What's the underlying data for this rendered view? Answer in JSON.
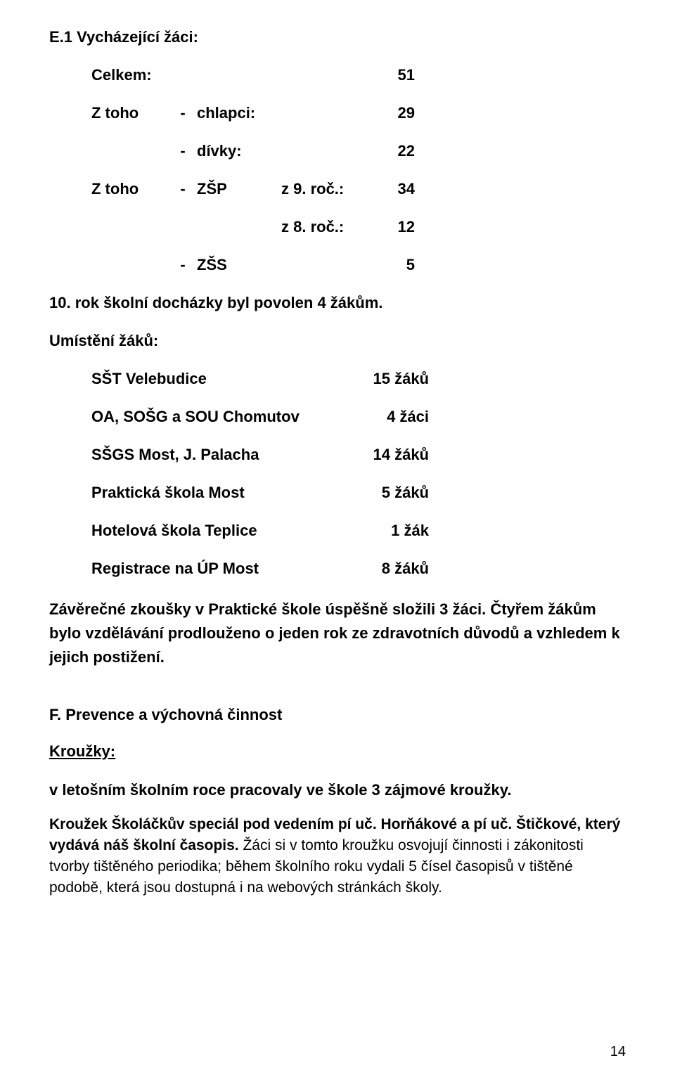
{
  "section_e": {
    "heading": "E.1 Vycházející žáci:",
    "rows": [
      {
        "c1": "Celkem:",
        "c2": "",
        "c3": "",
        "c4": "",
        "c5": "51"
      },
      {
        "c1": "Z toho",
        "c2": "-",
        "c3": "chlapci:",
        "c4": "",
        "c5": "29"
      },
      {
        "c1": "",
        "c2": "-",
        "c3": "dívky:",
        "c4": "",
        "c5": "22"
      },
      {
        "c1": "Z toho",
        "c2": "-",
        "c3": "ZŠP",
        "c4": "z 9. roč.:",
        "c5": "34"
      },
      {
        "c1": "",
        "c2": "",
        "c3": "",
        "c4": "z 8. roč.:",
        "c5": "12"
      },
      {
        "c1": "",
        "c2": "-",
        "c3": "ZŠS",
        "c4": "",
        "c5": "5"
      }
    ],
    "note": "10. rok školní docházky byl povolen 4 žákům."
  },
  "placement": {
    "heading": "Umístění žáků:",
    "rows": [
      {
        "school": "SŠT Velebudice",
        "count": "15 žáků"
      },
      {
        "school": "OA, SOŠG a SOU Chomutov",
        "count": "4 žáci"
      },
      {
        "school": "SŠGS Most, J. Palacha",
        "count": "14 žáků"
      },
      {
        "school": "Praktická škola Most",
        "count": "5 žáků"
      },
      {
        "school": "Hotelová škola Teplice",
        "count": "1 žák"
      },
      {
        "school": "Registrace na ÚP Most",
        "count": "8 žáků"
      }
    ],
    "footer": "Závěrečné zkoušky v Praktické škole úspěšně složili 3 žáci. Čtyřem žákům bylo vzdělávání prodlouženo o jeden rok ze zdravotních důvodů a vzhledem k jejich postižení."
  },
  "section_f": {
    "heading": "F. Prevence a výchovná činnost",
    "subheading": "Kroužky:",
    "line": "v letošním školním roce pracovaly ve škole 3 zájmové kroužky.",
    "para_bold": "Kroužek Školáčkův speciál pod vedením pí uč. Horňákové a pí uč. Štičkové, který vydává náš školní časopis.",
    "para_rest": " Žáci si v tomto kroužku osvojují činnosti i zákonitosti tvorby tištěného periodika; během školního roku vydali 5 čísel časopisů v tištěné podobě, která jsou dostupná i na webových stránkách školy."
  },
  "page_number": "14"
}
